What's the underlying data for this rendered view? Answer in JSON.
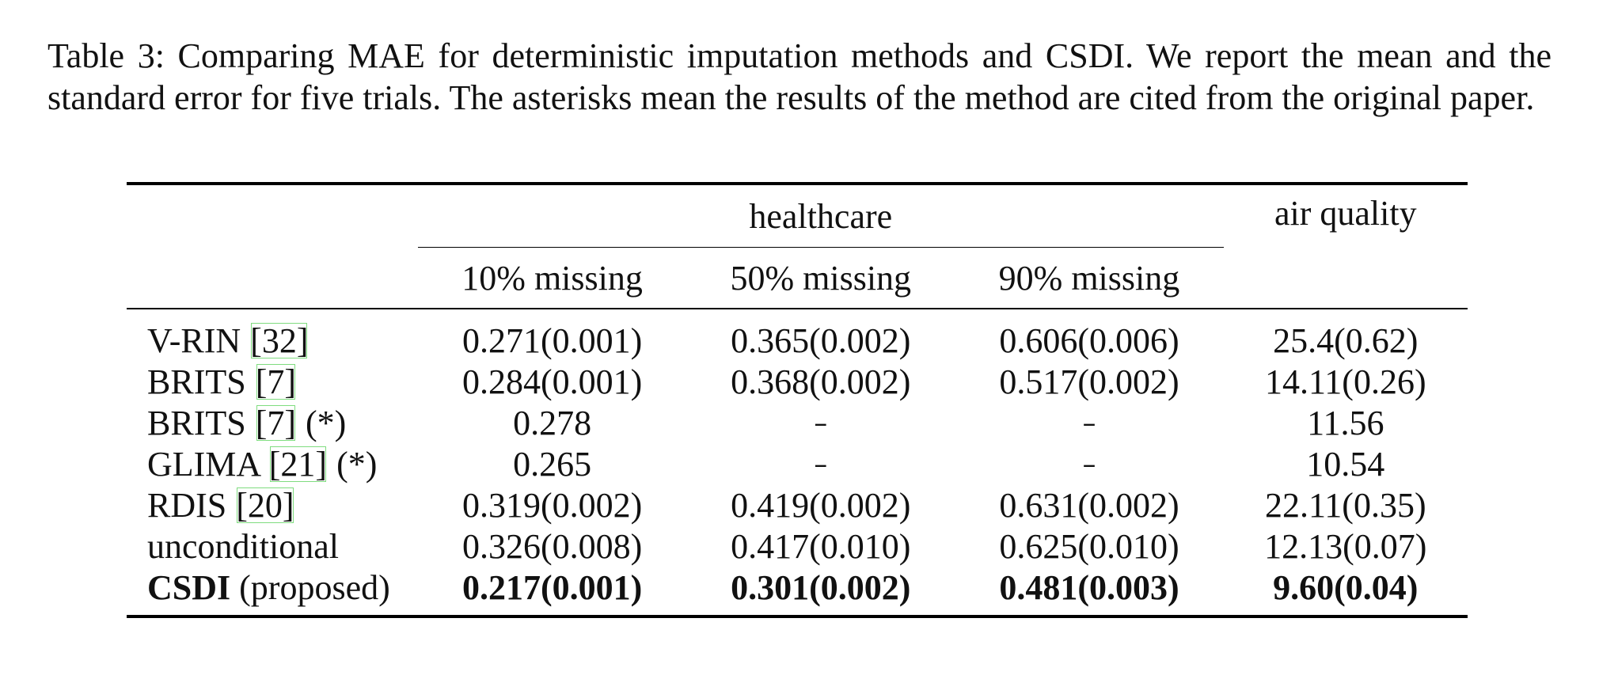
{
  "caption": "Table 3: Comparing MAE for deterministic imputation methods and CSDI. We report the mean and the standard error for five trials. The asterisks mean the results of the method are cited from the original paper.",
  "table": {
    "group_headers": {
      "healthcare": "healthcare",
      "air_quality": "air quality"
    },
    "sub_headers": [
      "10% missing",
      "50% missing",
      "90% missing"
    ],
    "rows": [
      {
        "name": "V-RIN ",
        "cite": "[32]",
        "suffix": "",
        "values": [
          "0.271(0.001)",
          "0.365(0.002)",
          "0.606(0.006)",
          "25.4(0.62)"
        ]
      },
      {
        "name": "BRITS ",
        "cite": "[7]",
        "suffix": "",
        "values": [
          "0.284(0.001)",
          "0.368(0.002)",
          "0.517(0.002)",
          "14.11(0.26)"
        ]
      },
      {
        "name": "BRITS ",
        "cite": "[7]",
        "suffix": " (*)",
        "values": [
          "0.278",
          "–",
          "–",
          "11.56"
        ]
      },
      {
        "name": "GLIMA ",
        "cite": "[21]",
        "suffix": " (*)",
        "values": [
          "0.265",
          "–",
          "–",
          "10.54"
        ]
      },
      {
        "name": "RDIS ",
        "cite": "[20]",
        "suffix": "",
        "values": [
          "0.319(0.002)",
          "0.419(0.002)",
          "0.631(0.002)",
          "22.11(0.35)"
        ]
      },
      {
        "name": "unconditional",
        "cite": "",
        "suffix": "",
        "values": [
          "0.326(0.008)",
          "0.417(0.010)",
          "0.625(0.010)",
          "12.13(0.07)"
        ]
      },
      {
        "name": "CSDI",
        "cite": "",
        "suffix": " (proposed)",
        "values": [
          "0.217(0.001)",
          "0.301(0.002)",
          "0.481(0.003)",
          "9.60(0.04)"
        ]
      }
    ]
  }
}
